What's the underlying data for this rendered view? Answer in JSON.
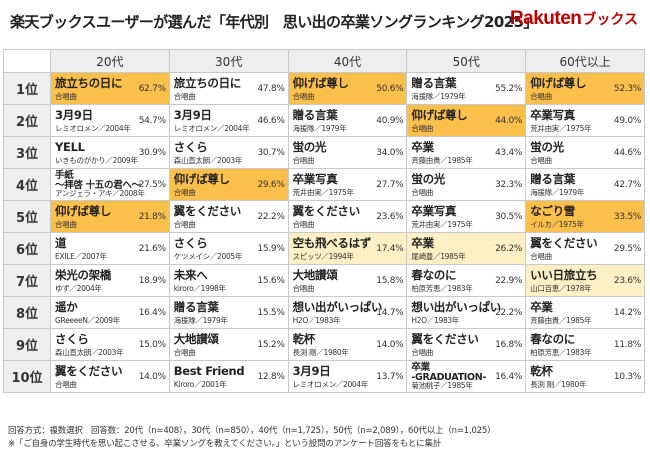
{
  "title": "楽天ブックスユーザーが選んだ「年代別　思い出の卒業ソングランキング2025」",
  "logo": {
    "main": "Rakuten",
    "sub": "ブックス"
  },
  "generations": [
    "20代",
    "30代",
    "40代",
    "50代",
    "60代以上"
  ],
  "ranks": [
    {
      "label": "1位",
      "cells": [
        {
          "song": "旅立ちの日に",
          "artist": "合唱曲",
          "pct": "62.7%",
          "hl": "hl"
        },
        {
          "song": "旅立ちの日に",
          "artist": "合唱曲",
          "pct": "47.8%",
          "hl": ""
        },
        {
          "song": "仰げば尊し",
          "artist": "合唱曲",
          "pct": "50.6%",
          "hl": "hl"
        },
        {
          "song": "贈る言葉",
          "artist": "海援隊／1979年",
          "pct": "55.2%",
          "hl": ""
        },
        {
          "song": "仰げば尊し",
          "artist": "合唱曲",
          "pct": "52.3%",
          "hl": "hl"
        }
      ]
    },
    {
      "label": "2位",
      "cells": [
        {
          "song": "3月9日",
          "artist": "レミオロメン／2004年",
          "pct": "54.7%",
          "hl": ""
        },
        {
          "song": "3月9日",
          "artist": "レミオロメン／2004年",
          "pct": "46.6%",
          "hl": ""
        },
        {
          "song": "贈る言葉",
          "artist": "海援隊／1979年",
          "pct": "40.9%",
          "hl": ""
        },
        {
          "song": "仰げば尊し",
          "artist": "合唱曲",
          "pct": "44.0%",
          "hl": "hl"
        },
        {
          "song": "卒業写真",
          "artist": "荒井由実／1975年",
          "pct": "49.0%",
          "hl": ""
        }
      ]
    },
    {
      "label": "3位",
      "cells": [
        {
          "song": "YELL",
          "artist": "いきものがかり／2009年",
          "pct": "30.9%",
          "hl": ""
        },
        {
          "song": "さくら",
          "artist": "森山直太朗／2003年",
          "pct": "30.7%",
          "hl": ""
        },
        {
          "song": "蛍の光",
          "artist": "合唱曲",
          "pct": "34.0%",
          "hl": ""
        },
        {
          "song": "卒業",
          "artist": "斉藤由貴／1985年",
          "pct": "43.4%",
          "hl": ""
        },
        {
          "song": "蛍の光",
          "artist": "合唱曲",
          "pct": "44.6%",
          "hl": ""
        }
      ]
    },
    {
      "label": "4位",
      "cells": [
        {
          "song": "手紙\n～拝啓 十五の君へ～",
          "artist": "アンジェラ・アキ／2008年",
          "pct": "27.5%",
          "hl": "",
          "two": true
        },
        {
          "song": "仰げば尊し",
          "artist": "合唱曲",
          "pct": "29.6%",
          "hl": "hl"
        },
        {
          "song": "卒業写真",
          "artist": "荒井由実／1975年",
          "pct": "27.7%",
          "hl": ""
        },
        {
          "song": "蛍の光",
          "artist": "合唱曲",
          "pct": "32.3%",
          "hl": ""
        },
        {
          "song": "贈る言葉",
          "artist": "海援隊／1979年",
          "pct": "42.7%",
          "hl": ""
        }
      ]
    },
    {
      "label": "5位",
      "cells": [
        {
          "song": "仰げば尊し",
          "artist": "合唱曲",
          "pct": "21.8%",
          "hl": "hl"
        },
        {
          "song": "翼をください",
          "artist": "合唱曲",
          "pct": "22.2%",
          "hl": ""
        },
        {
          "song": "翼をください",
          "artist": "合唱曲",
          "pct": "23.6%",
          "hl": ""
        },
        {
          "song": "卒業写真",
          "artist": "荒井由実／1975年",
          "pct": "30.5%",
          "hl": ""
        },
        {
          "song": "なごり雪",
          "artist": "イルカ／1975年",
          "pct": "33.5%",
          "hl": "hl"
        }
      ]
    },
    {
      "label": "6位",
      "cells": [
        {
          "song": "道",
          "artist": "EXILE／2007年",
          "pct": "21.6%",
          "hl": ""
        },
        {
          "song": "さくら",
          "artist": "ケツメイシ／2005年",
          "pct": "15.9%",
          "hl": ""
        },
        {
          "song": "空も飛べるはず",
          "artist": "スピッツ／1994年",
          "pct": "17.4%",
          "hl": "lt"
        },
        {
          "song": "卒業",
          "artist": "尾崎豊／1985年",
          "pct": "26.2%",
          "hl": "lt"
        },
        {
          "song": "翼をください",
          "artist": "合唱曲",
          "pct": "29.5%",
          "hl": ""
        }
      ]
    },
    {
      "label": "7位",
      "cells": [
        {
          "song": "栄光の架橋",
          "artist": "ゆず／2004年",
          "pct": "18.9%",
          "hl": ""
        },
        {
          "song": "未来へ",
          "artist": "kiroro／1998年",
          "pct": "15.6%",
          "hl": ""
        },
        {
          "song": "大地讃頌",
          "artist": "合唱曲",
          "pct": "15.8%",
          "hl": ""
        },
        {
          "song": "春なのに",
          "artist": "柏原芳恵／1983年",
          "pct": "22.9%",
          "hl": ""
        },
        {
          "song": "いい日旅立ち",
          "artist": "山口百恵／1978年",
          "pct": "23.6%",
          "hl": "lt"
        }
      ]
    },
    {
      "label": "8位",
      "cells": [
        {
          "song": "遥か",
          "artist": "GReeeeN／2009年",
          "pct": "16.4%",
          "hl": ""
        },
        {
          "song": "贈る言葉",
          "artist": "海援隊／1979年",
          "pct": "15.5%",
          "hl": ""
        },
        {
          "song": "想い出がいっぱい",
          "artist": "H2O／1983年",
          "pct": "14.7%",
          "hl": ""
        },
        {
          "song": "想い出がいっぱい",
          "artist": "H2O／1983年",
          "pct": "22.2%",
          "hl": ""
        },
        {
          "song": "卒業",
          "artist": "斉藤由貴／1985年",
          "pct": "14.2%",
          "hl": ""
        }
      ]
    },
    {
      "label": "9位",
      "cells": [
        {
          "song": "さくら",
          "artist": "森山直太朗／2003年",
          "pct": "15.0%",
          "hl": ""
        },
        {
          "song": "大地讃頌",
          "artist": "合唱曲",
          "pct": "15.2%",
          "hl": ""
        },
        {
          "song": "乾杯",
          "artist": "長渕 剛／1980年",
          "pct": "14.0%",
          "hl": ""
        },
        {
          "song": "翼をください",
          "artist": "合唱曲",
          "pct": "16.8%",
          "hl": ""
        },
        {
          "song": "春なのに",
          "artist": "柏原芳恵／1983年",
          "pct": "11.8%",
          "hl": ""
        }
      ]
    },
    {
      "label": "10位",
      "cells": [
        {
          "song": "翼をください",
          "artist": "合唱曲",
          "pct": "14.0%",
          "hl": ""
        },
        {
          "song": "Best Friend",
          "artist": "Kiroro／2001年",
          "pct": "12.8%",
          "hl": ""
        },
        {
          "song": "3月9日",
          "artist": "レミオロメン／2004年",
          "pct": "13.7%",
          "hl": ""
        },
        {
          "song": "卒業\n-GRADUATION-",
          "artist": "菊池桃子／1985年",
          "pct": "16.4%",
          "hl": "",
          "two": true
        },
        {
          "song": "乾杯",
          "artist": "長渕 剛／1980年",
          "pct": "10.3%",
          "hl": ""
        }
      ]
    }
  ],
  "footnote1": "回答方式：複数選択　回答数：20代（n=408），30代（n=850），40代（n=1,725），50代（n=2,089），60代以上（n=1,025）",
  "footnote2": "※「ご自身の学生時代を思い起こさせる、卒業ソングを教えてください。」という設問のアンケート回答をもとに集計"
}
